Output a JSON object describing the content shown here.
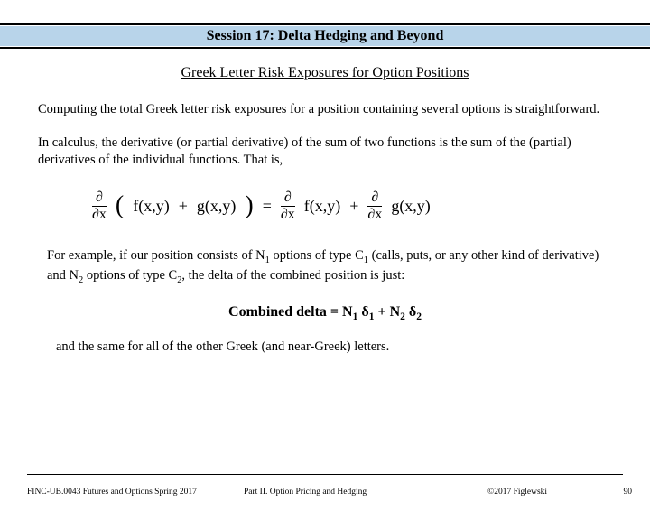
{
  "header": {
    "title": "Session 17: Delta Hedging and Beyond",
    "bg_color": "#b8d4ea"
  },
  "subtitle": "Greek Letter Risk Exposures for Option Positions",
  "paragraphs": {
    "p1": "Computing the total Greek letter risk exposures for a position containing several options is straightforward.",
    "p2": "In calculus, the derivative (or partial derivative) of the sum of two functions is the sum of the (partial) derivatives of the individual functions.  That is,"
  },
  "equation": {
    "partial": "∂",
    "dx": "∂x",
    "lp": "(",
    "rp": ")",
    "f": "f(x,y)",
    "plus": "+",
    "g": "g(x,y)",
    "eq": "="
  },
  "example": {
    "pre": "For example, if our position consists of N",
    "s1": "1",
    "mid1": " options of type C",
    "mid2": " (calls, puts, or any other kind of derivative) and N",
    "s2": "2",
    "mid3": " options of type C",
    "mid4": ", the delta of the combined position is just:"
  },
  "combined": {
    "label": "Combined delta   =   N",
    "d": " δ",
    "plus": "   +   N",
    "s1": "1",
    "s2": "2"
  },
  "closing": "and the same for all of the other Greek (and near-Greek) letters.",
  "footer": {
    "left": "FINC-UB.0043 Futures and Options Spring 2017",
    "center": "Part II. Option Pricing and Hedging",
    "right": "©2017 Figlewski",
    "page": "90"
  }
}
